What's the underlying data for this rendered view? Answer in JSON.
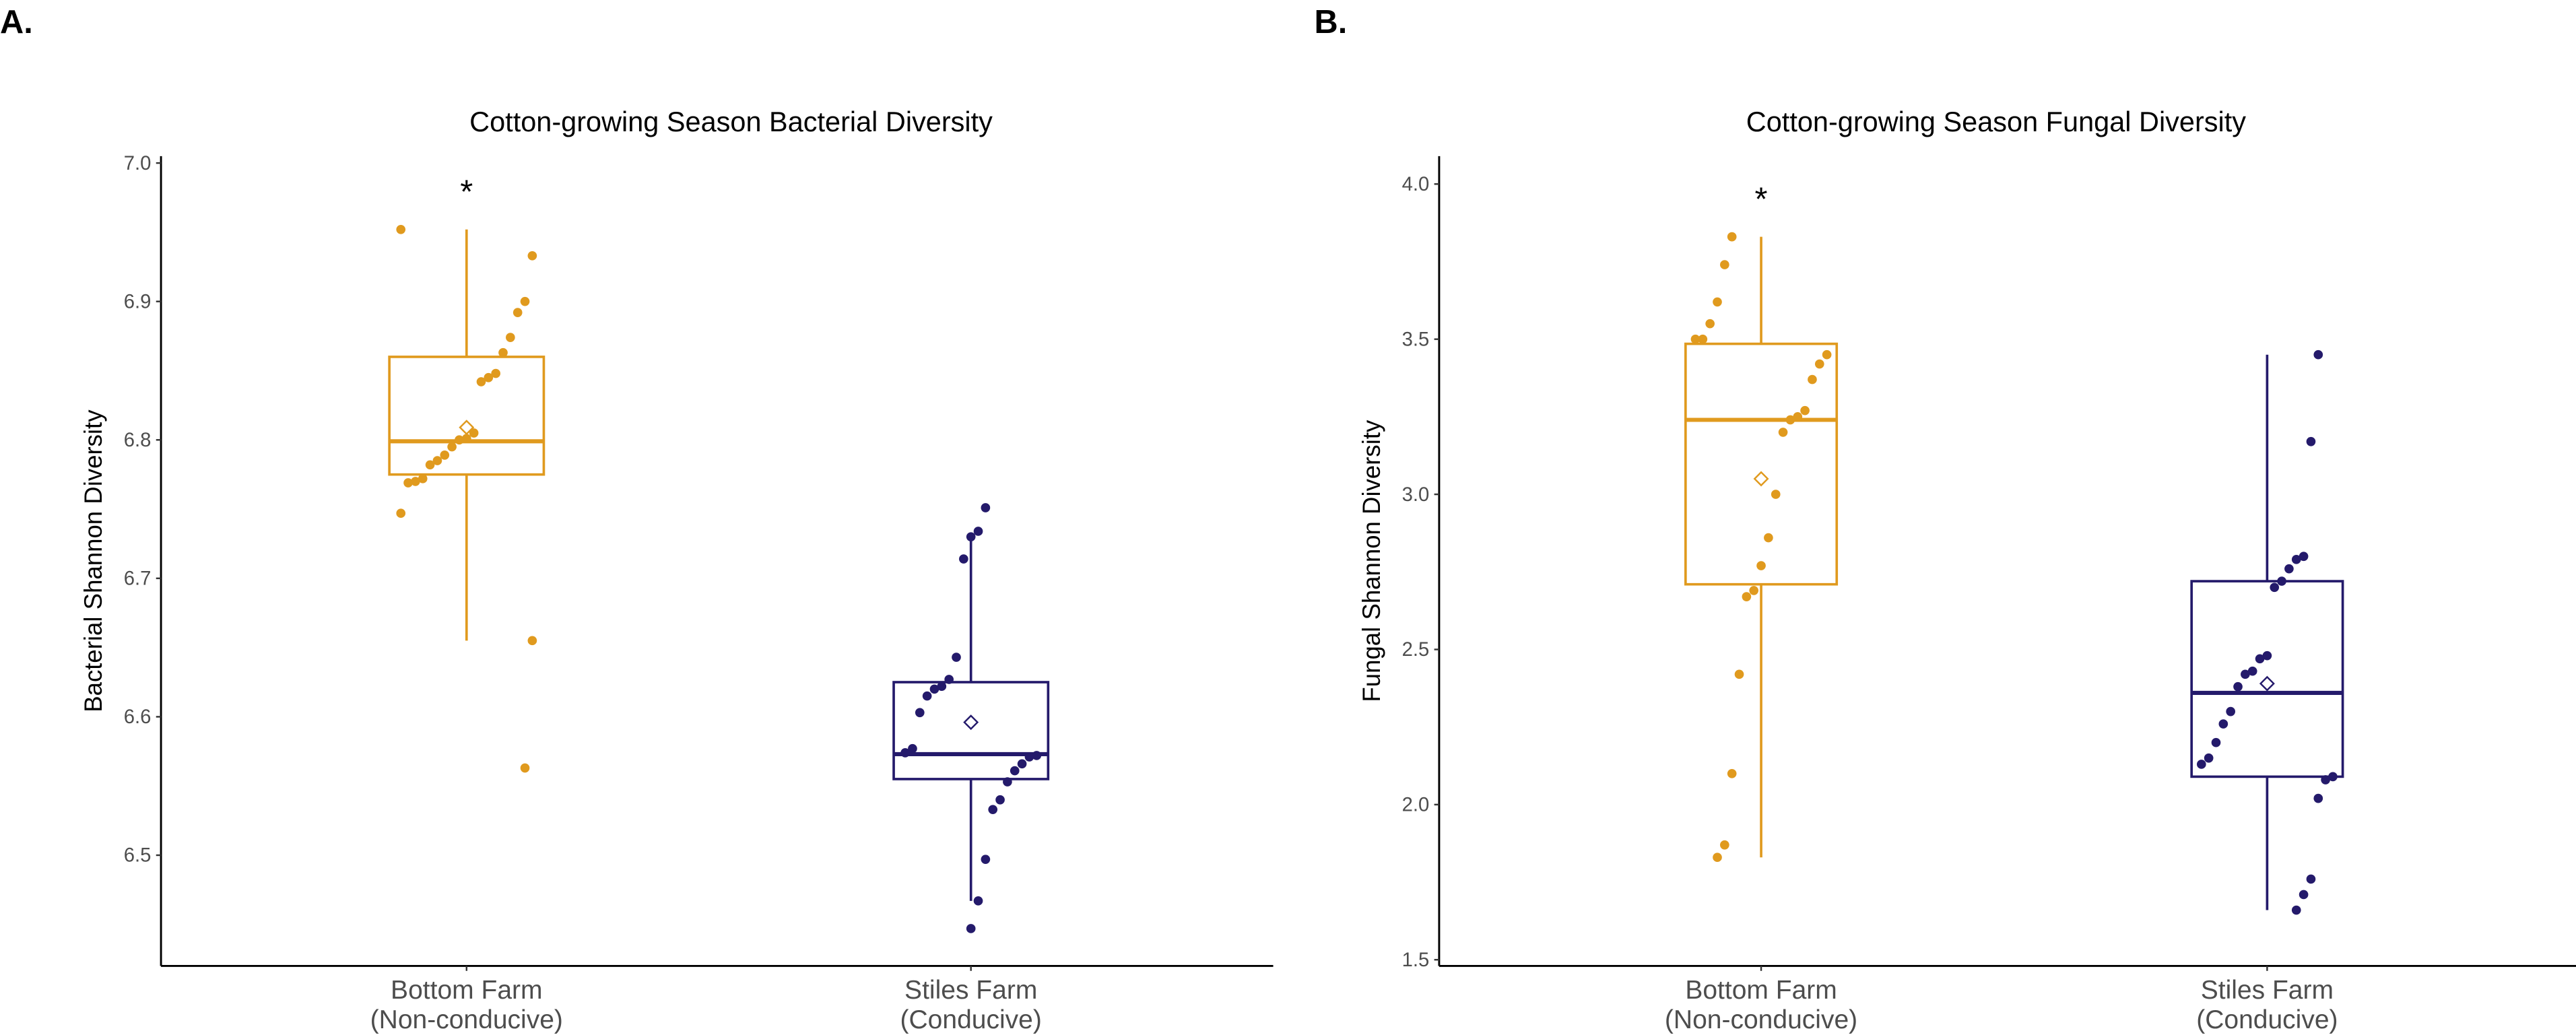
{
  "colors": {
    "non_conducive": "#E09A1E",
    "conducive": "#241A6B"
  },
  "chart_data": [
    {
      "type": "box",
      "panel_label": "A.",
      "title": "Cotton-growing Season Bacterial Diversity",
      "xlabel": "",
      "ylabel": "Bacterial Shannon Diversity",
      "ylim": [
        6.42,
        7.005
      ],
      "yticks": [
        6.5,
        6.6,
        6.7,
        6.8,
        6.9,
        7.0
      ],
      "ytick_labels": [
        "6.5",
        "6.6",
        "6.7",
        "6.8",
        "6.9",
        "7.0"
      ],
      "grid": false,
      "groups": [
        {
          "name": "Bottom Farm",
          "sub": "(Non-conducive)",
          "color_key": "non_conducive",
          "significance": "*",
          "box": {
            "whisker_low": 6.655,
            "q1": 6.775,
            "median": 6.799,
            "q3": 6.86,
            "whisker_high": 6.952
          },
          "mean": 6.809,
          "points": [
            6.952,
            6.933,
            6.9,
            6.892,
            6.874,
            6.863,
            6.848,
            6.845,
            6.842,
            6.805,
            6.801,
            6.8,
            6.795,
            6.789,
            6.785,
            6.782,
            6.772,
            6.77,
            6.769,
            6.747,
            6.655,
            6.563
          ]
        },
        {
          "name": "Stiles Farm",
          "sub": "(Conducive)",
          "color_key": "conducive",
          "significance": "",
          "box": {
            "whisker_low": 6.467,
            "q1": 6.555,
            "median": 6.573,
            "q3": 6.625,
            "whisker_high": 6.729
          },
          "mean": 6.596,
          "points": [
            6.751,
            6.734,
            6.73,
            6.714,
            6.643,
            6.627,
            6.622,
            6.62,
            6.615,
            6.603,
            6.577,
            6.574,
            6.572,
            6.571,
            6.566,
            6.561,
            6.553,
            6.54,
            6.533,
            6.497,
            6.467,
            6.447
          ]
        }
      ]
    },
    {
      "type": "box",
      "panel_label": "B.",
      "title": "Cotton-growing Season Fungal Diversity",
      "xlabel": "",
      "ylabel": "Fungal Shannon Diversity",
      "ylim": [
        1.48,
        4.09
      ],
      "yticks": [
        1.5,
        2.0,
        2.5,
        3.0,
        3.5,
        4.0
      ],
      "ytick_labels": [
        "1.5",
        "2.0",
        "2.5",
        "3.0",
        "3.5",
        "4.0"
      ],
      "grid": false,
      "groups": [
        {
          "name": "Bottom Farm",
          "sub": "(Non-conducive)",
          "color_key": "non_conducive",
          "significance": "*",
          "box": {
            "whisker_low": 1.83,
            "q1": 2.71,
            "median": 3.24,
            "q3": 3.485,
            "whisker_high": 3.83
          },
          "mean": 3.05,
          "points": [
            3.83,
            3.74,
            3.62,
            3.55,
            3.5,
            3.5,
            3.45,
            3.42,
            3.37,
            3.27,
            3.25,
            3.24,
            3.2,
            3.0,
            2.86,
            2.77,
            2.69,
            2.67,
            2.42,
            2.1,
            1.87,
            1.83
          ]
        },
        {
          "name": "Stiles Farm",
          "sub": "(Conducive)",
          "color_key": "conducive",
          "significance": "",
          "box": {
            "whisker_low": 1.66,
            "q1": 2.09,
            "median": 2.36,
            "q3": 2.72,
            "whisker_high": 3.45
          },
          "mean": 2.39,
          "points": [
            3.45,
            3.17,
            2.8,
            2.79,
            2.76,
            2.72,
            2.7,
            2.48,
            2.47,
            2.43,
            2.42,
            2.38,
            2.3,
            2.26,
            2.2,
            2.15,
            2.13,
            2.09,
            2.08,
            2.02,
            1.76,
            1.71,
            1.66
          ]
        }
      ]
    }
  ]
}
